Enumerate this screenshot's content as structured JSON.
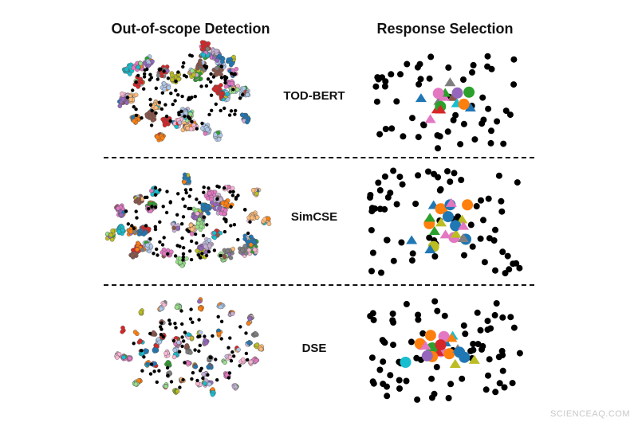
{
  "titles": {
    "left": "Out-of-scope Detection",
    "right": "Response Selection"
  },
  "rows": [
    {
      "label": "TOD-BERT"
    },
    {
      "label": "SimCSE"
    },
    {
      "label": "DSE"
    }
  ],
  "watermark": "SCIENCEAQ.COM",
  "palette": [
    "#e377c2",
    "#1f77b4",
    "#2ca02c",
    "#ff7f0e",
    "#17becf",
    "#9467bd",
    "#8c564b",
    "#d62728",
    "#bcbd22",
    "#7f7f7f",
    "#aec7e8",
    "#98df8a",
    "#ffbb78",
    "#f7b6d2",
    "#c5b0d5"
  ],
  "background_point_color": "#000000"
}
